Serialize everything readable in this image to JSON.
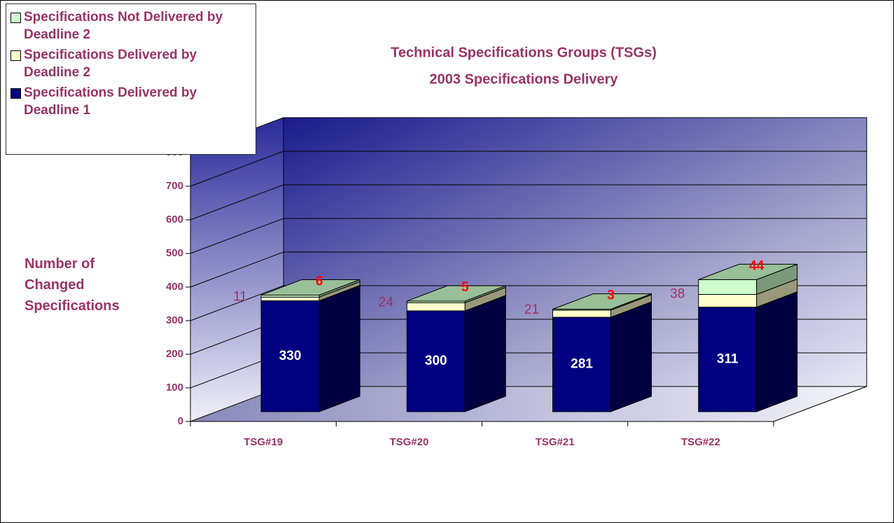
{
  "chart_data": {
    "type": "bar3d_stacked",
    "title": "Technical Specifications Groups (TSGs)",
    "subtitle": "2003 Specifications Delivery",
    "y_axis_label": "Number of Changed Specifications",
    "categories": [
      "TSG#19",
      "TSG#20",
      "TSG#21",
      "TSG#22"
    ],
    "series": [
      {
        "name": "Specifications Delivered by Deadline 1",
        "color": "#000080",
        "label_color": "#ffffff",
        "values": [
          330,
          300,
          281,
          311
        ]
      },
      {
        "name": "Specifications Delivered by Deadline 2",
        "color": "#ffffcc",
        "label_color": "#993366",
        "values": [
          11,
          24,
          21,
          38
        ]
      },
      {
        "name": "Specifications Not Delivered by Deadline 2",
        "color": "#ccffcc",
        "label_color": "#ff0000",
        "values": [
          6,
          5,
          3,
          44
        ]
      }
    ],
    "ylim": [
      0,
      800
    ],
    "yticks": [
      0,
      100,
      200,
      300,
      400,
      500,
      600,
      700,
      800
    ],
    "grid": true,
    "legend": "top-left"
  }
}
